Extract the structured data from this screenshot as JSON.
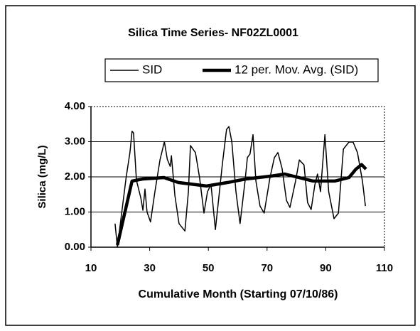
{
  "chart_data": {
    "type": "line",
    "title": "Silica Time Series- NF02ZL0001",
    "x_label": "Cumulative Month (Starting 07/10/86)",
    "y_label": "Silica (mg/L)",
    "xlim": [
      10,
      110
    ],
    "xticks": [
      10,
      30,
      50,
      70,
      90,
      110
    ],
    "ylim": [
      0,
      4
    ],
    "yticks": [
      {
        "value": 0,
        "label": "0.00"
      },
      {
        "value": 1,
        "label": "1.00"
      },
      {
        "value": 2,
        "label": "2.00"
      },
      {
        "value": 3,
        "label": "3.00"
      },
      {
        "value": 4,
        "label": "4.00"
      }
    ],
    "grid": true,
    "legend": "top",
    "series": [
      {
        "name": "SID",
        "color": "#000000",
        "x": [
          18.2,
          19,
          22,
          23.3,
          24,
          24.5,
          25.5,
          27,
          27.7,
          28.4,
          29.1,
          30.3,
          31.8,
          33.5,
          35,
          36,
          37,
          37.4,
          38.6,
          40,
          42,
          43.2,
          43.9,
          45.6,
          47,
          48.5,
          49.7,
          50.9,
          52.4,
          54.8,
          56.2,
          57,
          58,
          59.4,
          60.8,
          62.5,
          63.3,
          64.2,
          65.2,
          66.2,
          67.6,
          69,
          71,
          72.5,
          73.7,
          75.1,
          76.6,
          77.8,
          79.7,
          81,
          82.6,
          83.8,
          85,
          86.3,
          87.2,
          88.2,
          89.7,
          91,
          92.8,
          94.3,
          96,
          97.9,
          99.3,
          100.8,
          102.5,
          103.5
        ],
        "values": [
          0.67,
          0,
          2.0,
          2.7,
          3.3,
          3.25,
          1.9,
          1.4,
          1.05,
          1.65,
          1.0,
          0.72,
          1.58,
          2.48,
          3.0,
          2.5,
          2.3,
          2.6,
          1.47,
          0.67,
          0.46,
          1.58,
          2.89,
          2.69,
          1.98,
          0.97,
          1.58,
          1.78,
          0.5,
          2.38,
          3.35,
          3.43,
          3.0,
          1.58,
          0.67,
          1.88,
          2.55,
          2.65,
          3.2,
          1.88,
          1.17,
          0.97,
          1.98,
          2.55,
          2.69,
          2.24,
          1.33,
          1.13,
          1.88,
          2.48,
          2.34,
          1.27,
          1.07,
          1.78,
          2.08,
          1.58,
          3.2,
          1.58,
          0.81,
          0.97,
          2.79,
          2.99,
          2.99,
          2.69,
          1.88,
          1.17
        ]
      },
      {
        "name": "12 per. Mov. Avg. (SID)",
        "color": "#000000",
        "x": [
          19,
          24,
          27.6,
          34.9,
          39.7,
          49.4,
          56.6,
          62.7,
          71.2,
          76,
          85.7,
          93,
          97.9,
          100.3,
          102.2,
          103.7
        ],
        "values": [
          0.06,
          1.88,
          1.94,
          1.98,
          1.84,
          1.74,
          1.84,
          1.94,
          2.02,
          2.08,
          1.88,
          1.88,
          1.98,
          2.22,
          2.35,
          2.22
        ]
      }
    ]
  }
}
